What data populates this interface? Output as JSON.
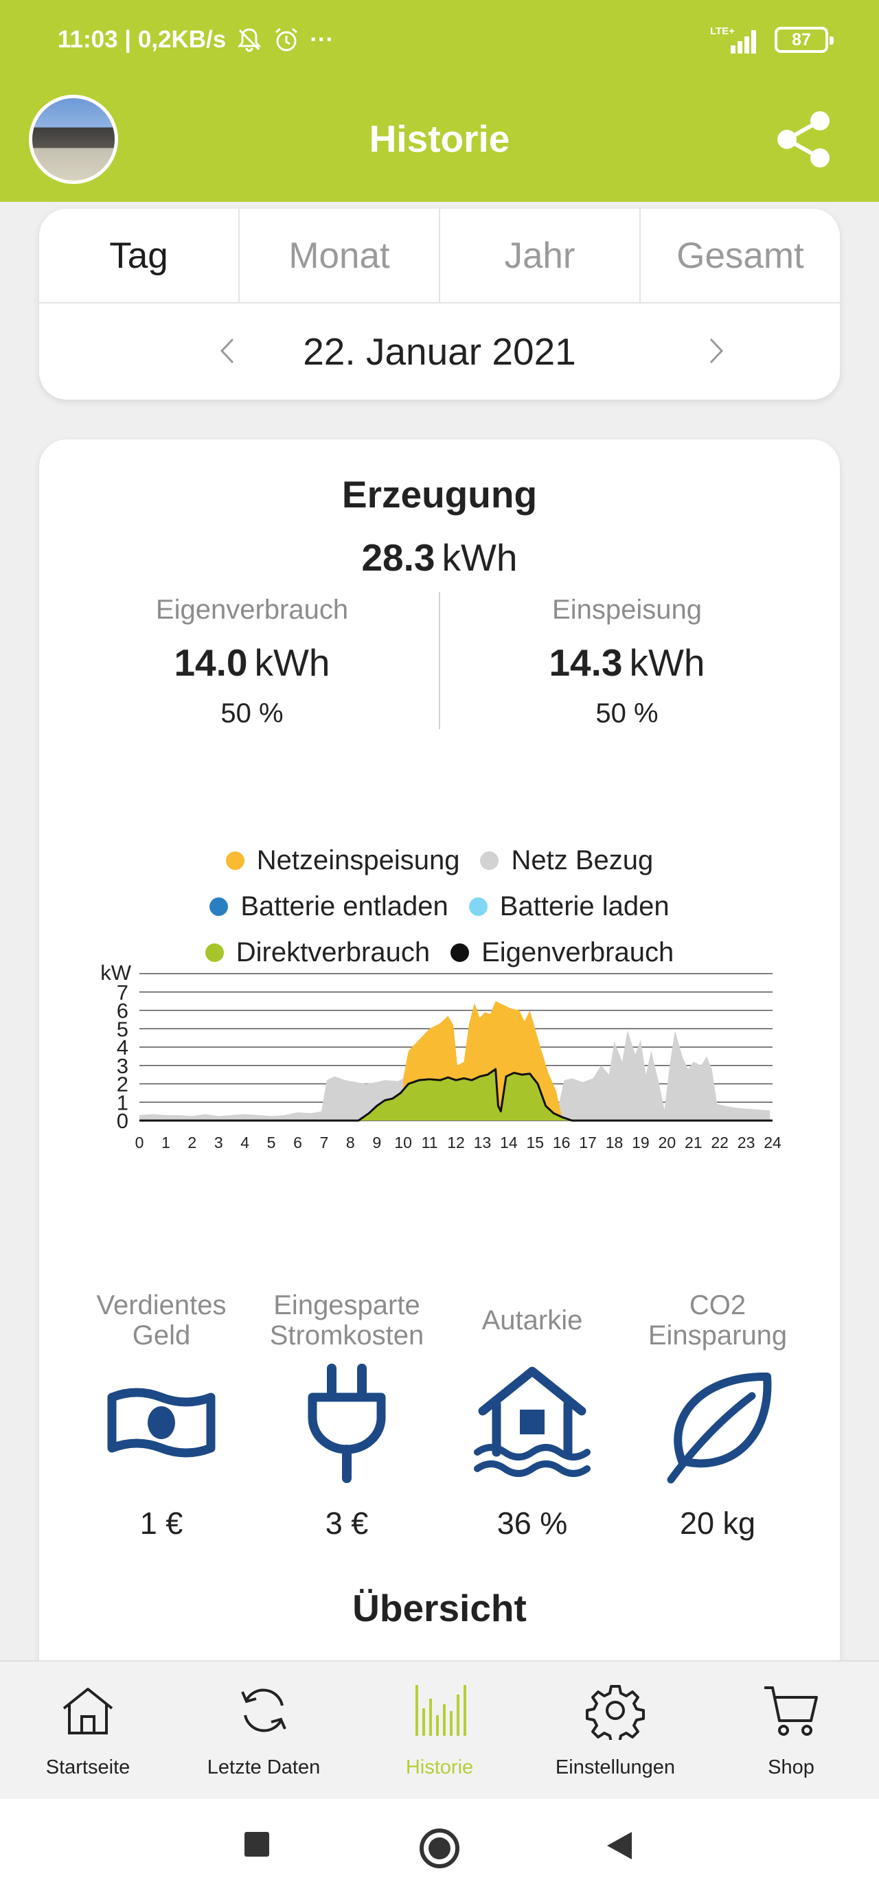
{
  "status_bar": {
    "time_speed": "11:03 | 0,2KB/s",
    "more": "···",
    "network": "LTE+",
    "battery": "87"
  },
  "header": {
    "title": "Historie"
  },
  "period": {
    "tabs": [
      {
        "label": "Tag",
        "active": true
      },
      {
        "label": "Monat",
        "active": false
      },
      {
        "label": "Jahr",
        "active": false
      },
      {
        "label": "Gesamt",
        "active": false
      }
    ],
    "date": "22. Januar 2021"
  },
  "summary": {
    "title": "Erzeugung",
    "total_value": "28.3",
    "total_unit": "kWh",
    "left": {
      "label": "Eigenverbrauch",
      "value": "14.0",
      "unit": "kWh",
      "percent": "50 %"
    },
    "right": {
      "label": "Einspeisung",
      "value": "14.3",
      "unit": "kWh",
      "percent": "50 %"
    }
  },
  "legend": [
    [
      {
        "label": "Netzeinspeisung",
        "color": "#f8bb32"
      },
      {
        "label": "Netz Bezug",
        "color": "#d2d2d2"
      }
    ],
    [
      {
        "label": "Batterie entladen",
        "color": "#2a7fc1"
      },
      {
        "label": "Batterie laden",
        "color": "#7fd7f5"
      }
    ],
    [
      {
        "label": "Direktverbrauch",
        "color": "#a7c42a"
      },
      {
        "label": "Eigenverbrauch",
        "color": "#111111"
      }
    ]
  ],
  "chart_data": {
    "type": "area",
    "ylabel": "kW",
    "xlabel": "",
    "ylim": [
      0,
      8
    ],
    "xlim": [
      0,
      24
    ],
    "yticks": [
      0,
      1,
      2,
      3,
      4,
      5,
      6,
      7
    ],
    "xticks": [
      0,
      1,
      2,
      3,
      4,
      5,
      6,
      7,
      8,
      9,
      10,
      11,
      12,
      13,
      14,
      15,
      16,
      17,
      18,
      19,
      20,
      21,
      22,
      23,
      24
    ],
    "grid": true,
    "series": [
      {
        "name": "Netz Bezug",
        "color": "#d2d2d2",
        "points": [
          [
            0,
            0.3
          ],
          [
            0.5,
            0.35
          ],
          [
            1,
            0.3
          ],
          [
            1.5,
            0.3
          ],
          [
            2,
            0.25
          ],
          [
            2.5,
            0.35
          ],
          [
            3,
            0.25
          ],
          [
            3.5,
            0.3
          ],
          [
            4,
            0.35
          ],
          [
            4.5,
            0.3
          ],
          [
            5,
            0.25
          ],
          [
            5.5,
            0.3
          ],
          [
            6,
            0.45
          ],
          [
            6.5,
            0.4
          ],
          [
            6.9,
            0.5
          ],
          [
            7.1,
            2.2
          ],
          [
            7.4,
            2.4
          ],
          [
            7.8,
            2.2
          ],
          [
            8.2,
            2.1
          ],
          [
            8.6,
            2.0
          ],
          [
            9.0,
            2.1
          ],
          [
            9.3,
            2.2
          ],
          [
            9.8,
            2.15
          ],
          [
            10.0,
            2.3
          ],
          [
            10.2,
            2.1
          ],
          [
            15.0,
            2.1
          ],
          [
            15.3,
            2.0
          ],
          [
            15.6,
            1.6
          ],
          [
            15.9,
            0.9
          ],
          [
            16.1,
            2.2
          ],
          [
            16.4,
            2.3
          ],
          [
            16.8,
            2.1
          ],
          [
            17.2,
            2.3
          ],
          [
            17.5,
            3.0
          ],
          [
            17.8,
            2.5
          ],
          [
            18.0,
            4.3
          ],
          [
            18.3,
            3.2
          ],
          [
            18.5,
            4.9
          ],
          [
            18.8,
            3.6
          ],
          [
            19.0,
            4.4
          ],
          [
            19.2,
            2.5
          ],
          [
            19.4,
            3.8
          ],
          [
            19.7,
            2.0
          ],
          [
            19.9,
            0.6
          ],
          [
            20.1,
            3.0
          ],
          [
            20.3,
            4.9
          ],
          [
            20.6,
            3.4
          ],
          [
            20.8,
            2.8
          ],
          [
            21.0,
            3.2
          ],
          [
            21.3,
            3.0
          ],
          [
            21.5,
            3.5
          ],
          [
            21.7,
            2.8
          ],
          [
            21.9,
            0.9
          ],
          [
            22.2,
            0.8
          ],
          [
            22.6,
            0.7
          ],
          [
            23.0,
            0.65
          ],
          [
            23.5,
            0.6
          ],
          [
            23.9,
            0.55
          ]
        ]
      },
      {
        "name": "Netzeinspeisung",
        "color": "#f8bb32",
        "points": [
          [
            10.0,
            2.3
          ],
          [
            10.2,
            3.8
          ],
          [
            10.6,
            4.4
          ],
          [
            11.0,
            5.0
          ],
          [
            11.4,
            5.3
          ],
          [
            11.7,
            5.7
          ],
          [
            11.9,
            5.2
          ],
          [
            12.05,
            3.0
          ],
          [
            12.3,
            3.2
          ],
          [
            12.5,
            5.3
          ],
          [
            12.7,
            6.4
          ],
          [
            12.9,
            5.6
          ],
          [
            13.1,
            5.9
          ],
          [
            13.3,
            5.8
          ],
          [
            13.5,
            6.5
          ],
          [
            13.8,
            6.3
          ],
          [
            14.1,
            6.1
          ],
          [
            14.4,
            6.0
          ],
          [
            14.6,
            5.4
          ],
          [
            14.8,
            6.0
          ],
          [
            15.0,
            5.0
          ],
          [
            15.2,
            4.0
          ],
          [
            15.5,
            2.6
          ],
          [
            15.8,
            1.6
          ],
          [
            16.0,
            0.3
          ],
          [
            16.2,
            0
          ]
        ]
      },
      {
        "name": "Direktverbrauch",
        "color": "#a7c42a",
        "points": [
          [
            8.3,
            0
          ],
          [
            8.7,
            0.4
          ],
          [
            9.0,
            0.8
          ],
          [
            9.3,
            1.1
          ],
          [
            9.6,
            1.2
          ],
          [
            9.9,
            1.5
          ],
          [
            10.2,
            2.0
          ],
          [
            10.6,
            2.2
          ],
          [
            11.0,
            2.25
          ],
          [
            11.4,
            2.2
          ],
          [
            11.7,
            2.35
          ],
          [
            12.0,
            2.2
          ],
          [
            12.3,
            2.3
          ],
          [
            12.6,
            2.2
          ],
          [
            12.9,
            2.4
          ],
          [
            13.2,
            2.5
          ],
          [
            13.5,
            2.8
          ],
          [
            13.6,
            0.8
          ],
          [
            13.7,
            0.5
          ],
          [
            13.9,
            2.4
          ],
          [
            14.2,
            2.6
          ],
          [
            14.5,
            2.5
          ],
          [
            14.8,
            2.55
          ],
          [
            15.1,
            2.0
          ],
          [
            15.4,
            0.8
          ],
          [
            15.7,
            0.4
          ],
          [
            16.0,
            0.2
          ],
          [
            16.4,
            0
          ]
        ]
      }
    ]
  },
  "stats": [
    {
      "label": "Verdientes Geld",
      "icon": "money-icon",
      "value": "1 €"
    },
    {
      "label": "Eingesparte Stromkosten",
      "icon": "plug-icon",
      "value": "3 €"
    },
    {
      "label": "Autarkie",
      "icon": "house-icon",
      "value": "36 %"
    },
    {
      "label": "CO2 Einsparung",
      "icon": "leaf-icon",
      "value": "20 kg"
    }
  ],
  "overview": {
    "title": "Übersicht"
  },
  "bottom_nav": [
    {
      "label": "Startseite",
      "icon": "home-icon",
      "active": false
    },
    {
      "label": "Letzte Daten",
      "icon": "refresh-icon",
      "active": false
    },
    {
      "label": "Historie",
      "icon": "history-icon",
      "active": true
    },
    {
      "label": "Einstellungen",
      "icon": "gear-icon",
      "active": false
    },
    {
      "label": "Shop",
      "icon": "cart-icon",
      "active": false
    }
  ],
  "colors": {
    "brand_green": "#b5cf35",
    "icon_blue": "#1d4a86"
  }
}
